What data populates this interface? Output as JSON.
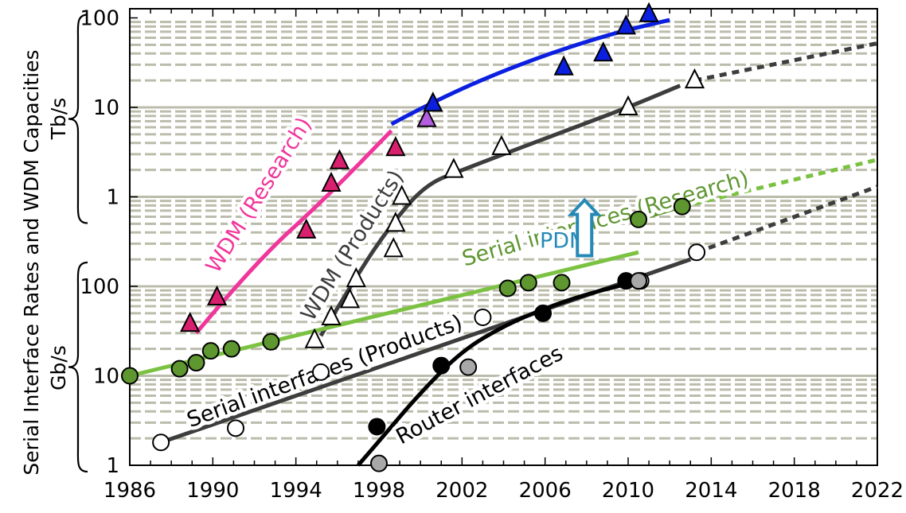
{
  "chart_data": {
    "type": "scatter",
    "title": "",
    "xlabel": "",
    "ylabel": "Serial Interface Rates and WDM Capacities",
    "xlim": [
      1986,
      2022
    ],
    "x_ticks": [
      "1986",
      "1990",
      "1994",
      "1998",
      "2002",
      "2006",
      "2010",
      "2014",
      "2018",
      "2022"
    ],
    "y_scale": "log",
    "panels": [
      {
        "name": "Tb/s",
        "ylim": [
          1,
          100
        ],
        "y_ticks": [
          "1",
          "10",
          "100"
        ]
      },
      {
        "name": "Gb/s",
        "ylim": [
          1,
          100
        ],
        "y_ticks": [
          "1",
          "10",
          "100"
        ]
      }
    ],
    "axis_note": "y axis spans 1 Gb/s to 100 Tb/s on one continuous log scale",
    "grid": true,
    "colors": {
      "wdm_research": "#f0359b",
      "wdm_research_marker": "#d9206e",
      "wdm_research_recent": "#0b1fe0",
      "wdm_products": "#3d3d3d",
      "serial_research": "#7cc242",
      "serial_research_marker": "#5e9630",
      "serial_products": "#3d3d3d",
      "router": "#000000",
      "pdm": "#2589b8",
      "grid": "#bcbcac"
    },
    "series": [
      {
        "name": "WDM (Research)",
        "marker": "filled-triangle",
        "unit": "Gb/s",
        "points": [
          [
            1988.9,
            38
          ],
          [
            1990.2,
            75
          ],
          [
            1994.5,
            420
          ],
          [
            1995.7,
            1400
          ],
          [
            1996.1,
            2500
          ],
          [
            1998.8,
            3500
          ],
          [
            2000.3,
            7400
          ],
          [
            2000.6,
            11000
          ],
          [
            2006.9,
            28000
          ],
          [
            2008.8,
            40000
          ],
          [
            2009.9,
            80000
          ],
          [
            2011.0,
            110000
          ]
        ]
      },
      {
        "name": "WDM (Products)",
        "marker": "open-triangle",
        "unit": "Gb/s",
        "points": [
          [
            1994.9,
            25
          ],
          [
            1995.7,
            45
          ],
          [
            1996.6,
            70
          ],
          [
            1996.9,
            120
          ],
          [
            1998.7,
            260
          ],
          [
            1998.8,
            500
          ],
          [
            1999.1,
            1000
          ],
          [
            2001.6,
            2000
          ],
          [
            2003.9,
            3600
          ],
          [
            2010.0,
            10000
          ],
          [
            2013.2,
            20000
          ]
        ]
      },
      {
        "name": "Serial interfaces (Research)",
        "marker": "filled-circle",
        "unit": "Gb/s",
        "points": [
          [
            1986.0,
            10
          ],
          [
            1988.4,
            12
          ],
          [
            1989.2,
            14
          ],
          [
            1989.9,
            19
          ],
          [
            1990.9,
            20
          ],
          [
            1992.8,
            24
          ],
          [
            2004.2,
            95
          ],
          [
            2005.2,
            110
          ],
          [
            2006.8,
            110
          ],
          [
            2010.5,
            560
          ],
          [
            2012.6,
            780
          ]
        ]
      },
      {
        "name": "Serial interfaces (Products)",
        "marker": "open-circle",
        "unit": "Gb/s",
        "points": [
          [
            1987.5,
            1.8
          ],
          [
            1991.1,
            2.6
          ],
          [
            1995.2,
            11
          ],
          [
            2003.0,
            45
          ],
          [
            2010.6,
            115
          ],
          [
            2013.3,
            240
          ]
        ]
      },
      {
        "name": "Router interfaces",
        "marker": "dark-circle",
        "unit": "Gb/s",
        "points": [
          [
            1997.9,
            2.7
          ],
          [
            1998.0,
            1.05
          ],
          [
            2001.0,
            13
          ],
          [
            2002.3,
            12.5
          ],
          [
            2005.9,
            50
          ],
          [
            2009.9,
            115
          ],
          [
            2010.5,
            115
          ]
        ]
      }
    ],
    "trend_lines": [
      {
        "series": "WDM (Research)",
        "segments": [
          {
            "color": "#f0359b",
            "points": [
              [
                1989.2,
                30
              ],
              [
                1992.0,
                180
              ],
              [
                1995.5,
                1000
              ],
              [
                1998.6,
                5500
              ]
            ]
          },
          {
            "color": "#0b1fe0",
            "points": [
              [
                1998.6,
                6500
              ],
              [
                2001.0,
                13000
              ],
              [
                2005.0,
                32000
              ],
              [
                2009.0,
                65000
              ],
              [
                2012.0,
                95000
              ]
            ]
          }
        ]
      },
      {
        "series": "WDM (Products)",
        "segments": [
          {
            "color": "#3d3d3d",
            "points": [
              [
                1995.2,
                28
              ],
              [
                1997.0,
                140
              ],
              [
                1998.5,
                460
              ],
              [
                2000.2,
                1350
              ],
              [
                2002.0,
                2000
              ],
              [
                2007.0,
                5500
              ],
              [
                2010.0,
                10000
              ],
              [
                2012.5,
                17500
              ]
            ]
          },
          {
            "color": "#3d3d3d",
            "dotted": true,
            "points": [
              [
                2013.2,
                20000
              ],
              [
                2022.0,
                52000
              ]
            ]
          }
        ]
      },
      {
        "series": "Serial interfaces (Research)",
        "segments": [
          {
            "color": "#7cc242",
            "points": [
              [
                1986.0,
                10
              ],
              [
                2010.5,
                240
              ]
            ]
          },
          {
            "color": "#5e9630",
            "points": [
              [
                2010.5,
                560
              ],
              [
                2012.6,
                780
              ]
            ]
          },
          {
            "color": "#7cc242",
            "dotted": true,
            "points": [
              [
                2012.6,
                780
              ],
              [
                2022.0,
                2600
              ]
            ]
          }
        ]
      },
      {
        "series": "Serial interfaces (Products)",
        "segments": [
          {
            "color": "#3d3d3d",
            "points": [
              [
                1987.5,
                1.8
              ],
              [
                2013.0,
                200
              ]
            ]
          },
          {
            "color": "#3d3d3d",
            "dotted": true,
            "points": [
              [
                2013.3,
                240
              ],
              [
                2022.0,
                1300
              ]
            ]
          }
        ]
      },
      {
        "series": "Router interfaces",
        "segments": [
          {
            "color": "#000000",
            "points": [
              [
                1997.0,
                1.0
              ],
              [
                1998.2,
                2.1
              ],
              [
                2000.0,
                6.5
              ],
              [
                2002.0,
                19
              ],
              [
                2004.0,
                36
              ],
              [
                2006.0,
                57
              ],
              [
                2008.0,
                82
              ],
              [
                2010.2,
                110
              ]
            ]
          }
        ]
      }
    ],
    "annotations": [
      {
        "text": "WDM (Research)",
        "color": "#f0359b",
        "x": 1992.5,
        "y": 950,
        "angle": -58
      },
      {
        "text": "WDM (Products)",
        "color": "#3d3d3d",
        "x": 1997.0,
        "y": 260,
        "angle": -58
      },
      {
        "text": "Serial interfaces (Research)",
        "color": "#5e9630",
        "x": 2009.0,
        "y": 480,
        "angle": -16
      },
      {
        "text": "Serial interfaces (Products)",
        "color": "#000000",
        "x": 1995.5,
        "y": 9.5,
        "angle": -20
      },
      {
        "text": "Router interfaces",
        "color": "#000000",
        "x": 2003.0,
        "y": 5.2,
        "angle": -28
      },
      {
        "text": "PDM",
        "color": "#2589b8",
        "x": 2006.9,
        "y": 270,
        "angle": 0
      }
    ],
    "pdm_arrow": {
      "x": 2007.9,
      "y_from": 220,
      "y_to": 920
    }
  }
}
